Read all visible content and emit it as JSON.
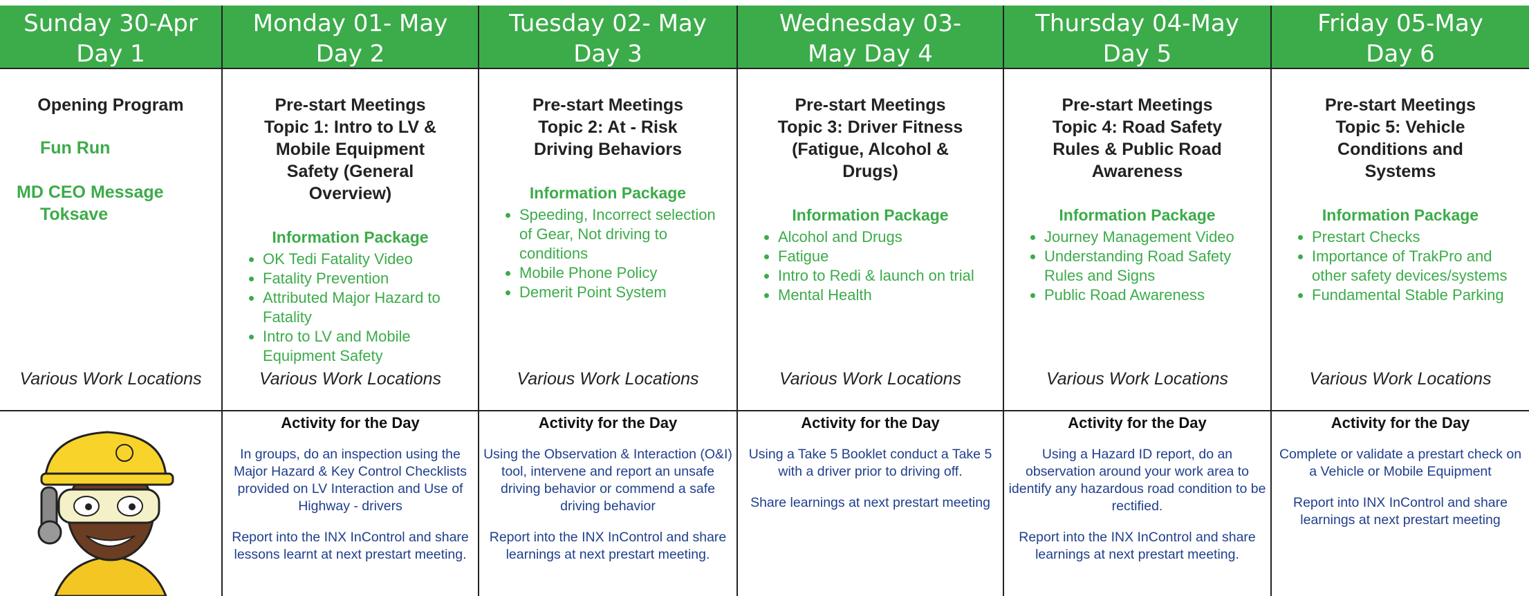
{
  "columns": [
    {
      "header": [
        "Sunday 30-Apr",
        "Day 1"
      ],
      "program": {
        "title": [
          "Opening Program"
        ],
        "items": [
          "Fun Run",
          "MD CEO Message",
          "Toksave"
        ],
        "location": "Various Work Locations"
      }
    },
    {
      "header": [
        "Monday 01- May",
        "Day 2"
      ],
      "program": {
        "title": [
          "Pre-start Meetings",
          "Topic 1: Intro to LV &",
          "Mobile Equipment",
          "Safety (General",
          "Overview)"
        ],
        "package": "Information Package",
        "bullets": [
          "OK Tedi Fatality Video",
          "Fatality Prevention",
          "Attributed Major Hazard to Fatality",
          "Intro to LV and Mobile Equipment Safety"
        ],
        "location": "Various Work Locations"
      },
      "activity": {
        "title": "Activity for the Day",
        "paragraphs": [
          "In groups, do an inspection using the Major Hazard & Key Control Checklists provided on LV Interaction and Use of Highway - drivers",
          "Report into the INX InControl and share lessons learnt at next prestart meeting."
        ]
      }
    },
    {
      "header": [
        "Tuesday 02- May",
        "Day 3"
      ],
      "program": {
        "title": [
          "Pre-start Meetings",
          "Topic 2: At - Risk",
          "Driving Behaviors"
        ],
        "package": "Information Package",
        "bullets": [
          "Speeding, Incorrect selection of Gear, Not driving to conditions",
          "Mobile Phone Policy",
          "Demerit Point System"
        ],
        "location": "Various Work Locations"
      },
      "activity": {
        "title": "Activity for the Day",
        "paragraphs": [
          "Using the Observation & Interaction (O&I) tool, intervene and report an unsafe driving behavior or commend a safe driving behavior",
          "Report into the INX InControl and share learnings at next prestart meeting."
        ]
      }
    },
    {
      "header": [
        "Wednesday 03-",
        "May Day 4"
      ],
      "program": {
        "title": [
          "Pre-start Meetings",
          "Topic 3: Driver Fitness",
          "(Fatigue, Alcohol &",
          "Drugs)"
        ],
        "package": "Information Package",
        "bullets": [
          "Alcohol and Drugs",
          "Fatigue",
          "Intro to Redi & launch on trial",
          "Mental Health"
        ],
        "location": "Various Work Locations"
      },
      "activity": {
        "title": "Activity for the Day",
        "paragraphs": [
          "Using a Take 5 Booklet conduct a Take 5 with a driver prior to driving off.",
          "Share learnings at next prestart meeting"
        ]
      }
    },
    {
      "header": [
        "Thursday 04-May",
        "Day 5"
      ],
      "program": {
        "title": [
          "Pre-start Meetings",
          "Topic 4: Road Safety",
          "Rules & Public Road",
          "Awareness"
        ],
        "package": "Information Package",
        "bullets": [
          "Journey Management Video",
          "Understanding Road Safety Rules and Signs",
          "Public Road Awareness"
        ],
        "location": "Various Work Locations"
      },
      "activity": {
        "title": "Activity for the Day",
        "paragraphs": [
          "Using a Hazard ID report, do an observation around your work area to identify any hazardous road condition to be rectified.",
          "Report into the INX InControl and share learnings at next prestart meeting."
        ]
      }
    },
    {
      "header": [
        "Friday 05-May",
        "Day 6"
      ],
      "program": {
        "title": [
          "Pre-start Meetings",
          "Topic 5: Vehicle",
          "Conditions and",
          "Systems"
        ],
        "package": "Information Package",
        "bullets": [
          "Prestart Checks",
          "Importance of TrakPro and other safety devices/systems",
          "Fundamental Stable Parking"
        ],
        "location": "Various Work Locations"
      },
      "activity": {
        "title": "Activity for the Day",
        "paragraphs": [
          "Complete or validate a prestart check on a Vehicle or Mobile Equipment",
          "Report into INX InControl and share learnings at next prestart meeting"
        ]
      }
    }
  ]
}
